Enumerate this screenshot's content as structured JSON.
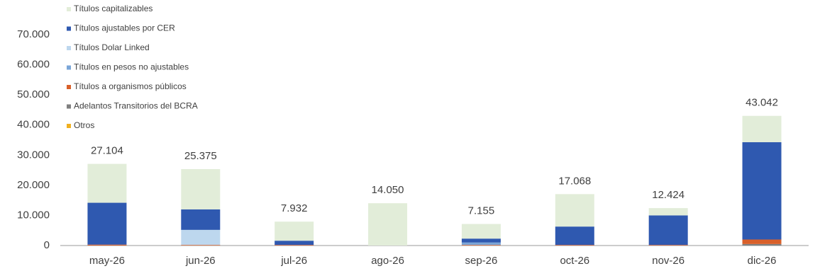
{
  "chart_data": {
    "type": "stacked_bar",
    "categories": [
      "may-26",
      "jun-26",
      "jul-26",
      "ago-26",
      "sep-26",
      "oct-26",
      "nov-26",
      "dic-26"
    ],
    "series": [
      {
        "name": "Otros",
        "color": "#f0b020",
        "values": [
          0,
          0,
          0,
          0,
          0,
          0,
          0,
          0
        ]
      },
      {
        "name": "Adelantos Transitorios del BCRA",
        "color": "#7f7f7f",
        "values": [
          0,
          0,
          0,
          0,
          0,
          0,
          0,
          500
        ]
      },
      {
        "name": "Títulos a organismos públicos",
        "color": "#d9602a",
        "values": [
          300,
          200,
          200,
          0,
          200,
          200,
          200,
          1500
        ]
      },
      {
        "name": "Títulos en pesos no ajustables",
        "color": "#7aa6d8",
        "values": [
          0,
          0,
          0,
          0,
          800,
          0,
          0,
          0
        ]
      },
      {
        "name": "Títulos Dolar Linked",
        "color": "#bdd7ee",
        "values": [
          0,
          5000,
          0,
          0,
          0,
          0,
          0,
          0
        ]
      },
      {
        "name": "Títulos ajustables por CER",
        "color": "#2f59b0",
        "values": [
          13900,
          6800,
          1400,
          0,
          1300,
          6100,
          9800,
          32300
        ]
      },
      {
        "name": "Títulos capitalizables",
        "color": "#e2edd9",
        "values": [
          12904,
          13375,
          6332,
          14050,
          4855,
          10768,
          2424,
          8742
        ]
      }
    ],
    "totals": [
      27104,
      25375,
      7932,
      14050,
      7155,
      17068,
      12424,
      43042
    ],
    "value_labels": [
      "27.104",
      "25.375",
      "7.932",
      "14.050",
      "7.155",
      "17.068",
      "12.424",
      "43.042"
    ],
    "ylim": [
      0,
      70000
    ],
    "yticks": [
      0,
      {
        "value": 10000,
        "label": "10.000"
      },
      {
        "value": 20000,
        "label": "20.000"
      },
      {
        "value": 30000,
        "label": "30.000"
      },
      {
        "value": 40000,
        "label": "40.000"
      },
      {
        "value": 50000,
        "label": "50.000"
      },
      {
        "value": 60000,
        "label": "60.000"
      },
      {
        "value": 70000,
        "label": "70.000"
      }
    ],
    "grid": false,
    "legend": "top-left"
  }
}
